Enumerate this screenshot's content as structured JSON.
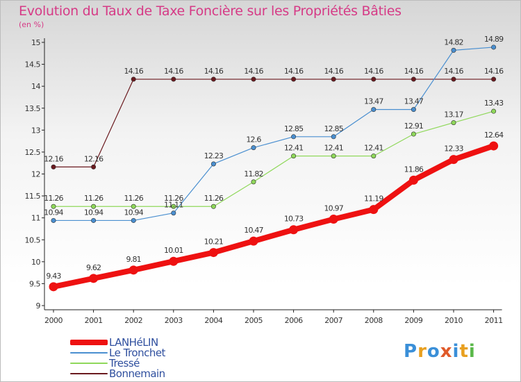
{
  "title": "Evolution du Taux de Taxe Foncière sur les Propriétés Bâties",
  "subtitle": "(en %)",
  "logo": {
    "text": "Proxiti",
    "letter_colors": [
      "#3a8fd8",
      "#e8a020",
      "#3a8fd8",
      "#e05a2a",
      "#3a8fd8",
      "#e8a020",
      "#5ab84a"
    ]
  },
  "chart_data": {
    "type": "line",
    "x": [
      2000,
      2001,
      2002,
      2003,
      2004,
      2005,
      2006,
      2007,
      2008,
      2009,
      2010,
      2011
    ],
    "ylim": [
      9,
      15
    ],
    "yticks": [
      "9",
      "9.5",
      "10",
      "10.5",
      "11",
      "11.5",
      "12",
      "12.5",
      "13",
      "13.5",
      "14",
      "14.5",
      "15"
    ],
    "grid": false,
    "legend_position": "bottom-left",
    "series": [
      {
        "name": "Bonnemain",
        "color": "#6b1a1f",
        "values": [
          12.16,
          12.16,
          14.16,
          14.16,
          14.16,
          14.16,
          14.16,
          14.16,
          14.16,
          14.16,
          14.16,
          14.16
        ],
        "labels": [
          "12.16",
          "12.16",
          "14.16",
          "14.16",
          "14.16",
          "14.16",
          "14.16",
          "14.16",
          "14.16",
          "14.16",
          "14.16",
          "14.16"
        ]
      },
      {
        "name": "Tressé",
        "color": "#8fd85a",
        "values": [
          11.26,
          11.26,
          11.26,
          11.26,
          11.26,
          11.82,
          12.41,
          12.41,
          12.41,
          12.91,
          13.17,
          13.43
        ],
        "labels": [
          "11.26",
          "11.26",
          "11.26",
          "11.26",
          "11.26",
          "11.82",
          "12.41",
          "12.41",
          "12.41",
          "12.91",
          "13.17",
          "13.43"
        ]
      },
      {
        "name": "Le Tronchet",
        "color": "#4a8fd0",
        "values": [
          10.94,
          10.94,
          10.94,
          11.11,
          12.23,
          12.6,
          12.85,
          12.85,
          13.47,
          13.47,
          14.82,
          14.89
        ],
        "labels": [
          "10.94",
          "10.94",
          "10.94",
          "11.11",
          "12.23",
          "12.6",
          "12.85",
          "12.85",
          "13.47",
          "13.47",
          "14.82",
          "14.89"
        ]
      },
      {
        "name": "LANHéLIN",
        "color": "#ee1111",
        "values": [
          9.43,
          9.62,
          9.81,
          10.01,
          10.21,
          10.47,
          10.73,
          10.97,
          11.19,
          11.86,
          12.33,
          12.64
        ],
        "labels": [
          "9.43",
          "9.62",
          "9.81",
          "10.01",
          "10.21",
          "10.47",
          "10.73",
          "10.97",
          "11.19",
          "11.86",
          "12.33",
          "12.64"
        ]
      }
    ],
    "legend_order": [
      "LANHéLIN",
      "Le Tronchet",
      "Tressé",
      "Bonnemain"
    ]
  }
}
